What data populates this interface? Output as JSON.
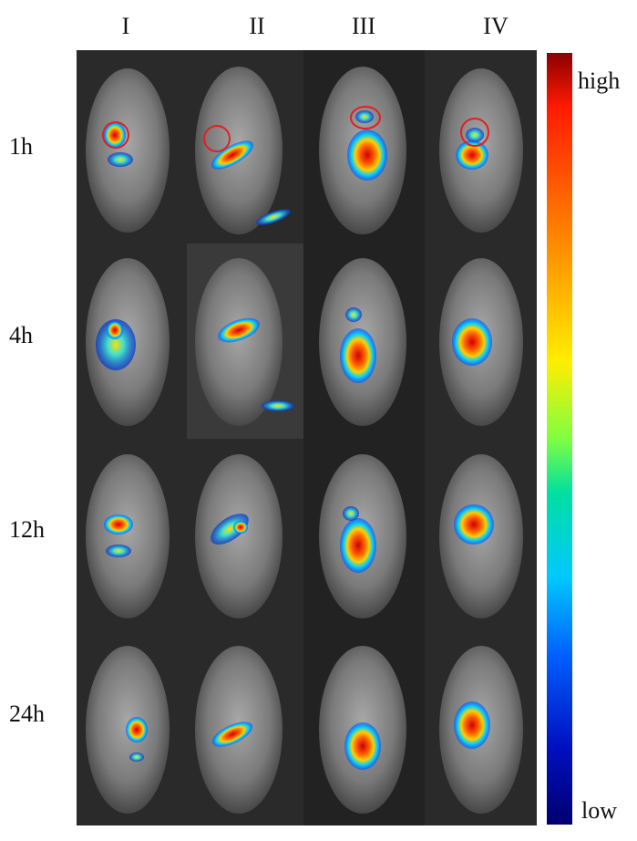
{
  "columns": [
    "I",
    "II",
    "III",
    "IV"
  ],
  "rows": [
    "1h",
    "4h",
    "12h",
    "24h"
  ],
  "scale": {
    "high": "high",
    "low": "low",
    "colors": [
      "#8a0000",
      "#ff1a00",
      "#ff8c00",
      "#ffee00",
      "#7fff40",
      "#00e0a0",
      "#00c8ff",
      "#0060ff",
      "#0010c0",
      "#000070"
    ]
  },
  "markers": [
    {
      "row": 0,
      "col": 0,
      "label": "red-circle"
    },
    {
      "row": 0,
      "col": 1,
      "label": "red-circle"
    },
    {
      "row": 0,
      "col": 2,
      "label": "red-circle"
    },
    {
      "row": 0,
      "col": 3,
      "label": "red-circle"
    }
  ]
}
